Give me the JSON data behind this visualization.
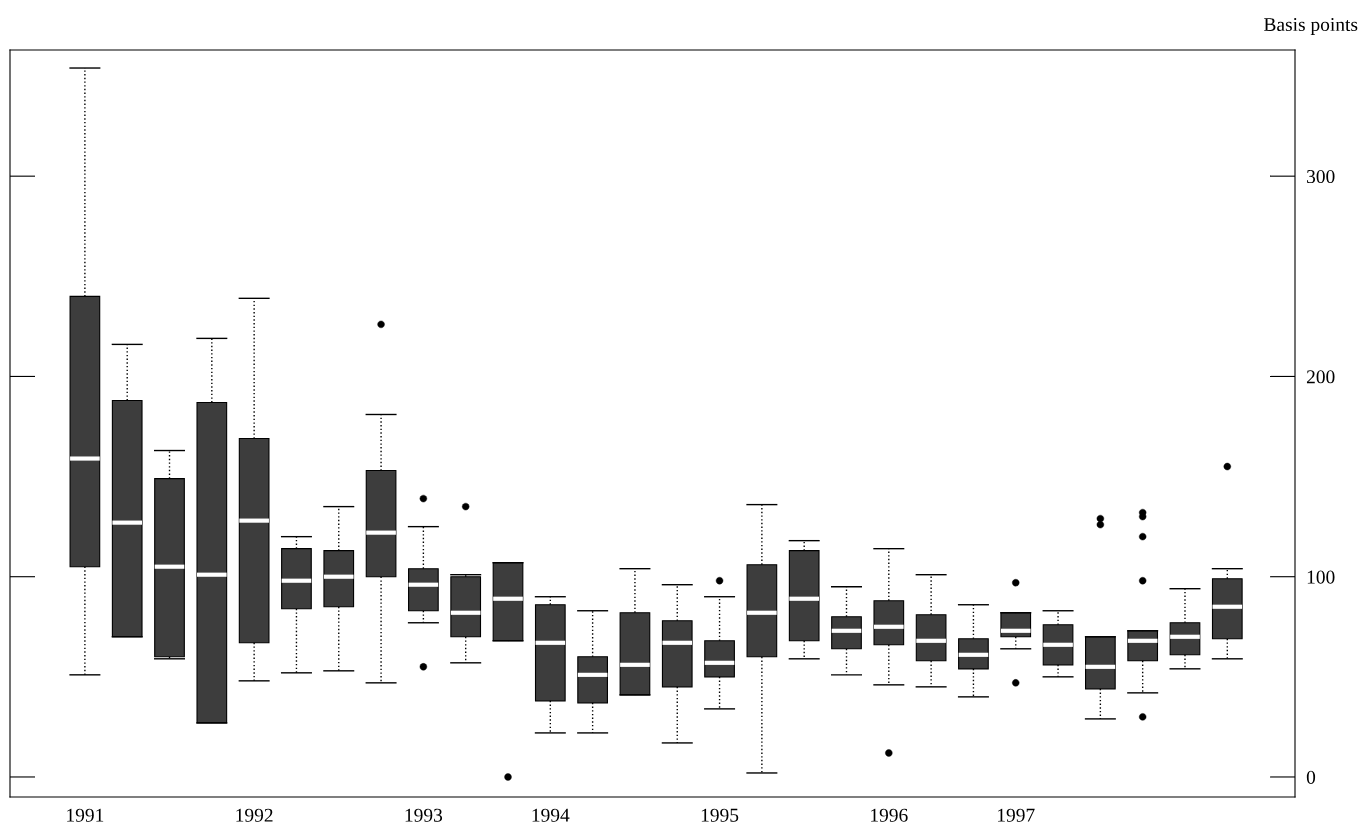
{
  "chart_data": {
    "type": "box",
    "ylabel": "Basis points",
    "color": "#3d3d3d",
    "categories": [
      "1991",
      null,
      null,
      null,
      "1992",
      null,
      null,
      null,
      "1993",
      null,
      null,
      "1994",
      null,
      null,
      null,
      "1995",
      null,
      null,
      null,
      "1996",
      null,
      null,
      "1997",
      null,
      null,
      null,
      null,
      null
    ],
    "boxes": [
      {
        "low": 51,
        "q1": 105,
        "median": 159,
        "q3": 240,
        "high": 354
      },
      {
        "low": 70,
        "q1": 70,
        "median": 127,
        "q3": 188,
        "high": 216
      },
      {
        "low": 59,
        "q1": 60,
        "median": 105,
        "q3": 149,
        "high": 163
      },
      {
        "low": 27,
        "q1": 27,
        "median": 101,
        "q3": 187,
        "high": 219
      },
      {
        "low": 48,
        "q1": 67,
        "median": 128,
        "q3": 169,
        "high": 239
      },
      {
        "low": 52,
        "q1": 84,
        "median": 98,
        "q3": 114,
        "high": 120
      },
      {
        "low": 53,
        "q1": 85,
        "median": 100,
        "q3": 113,
        "high": 135
      },
      {
        "low": 47,
        "q1": 100,
        "median": 122,
        "q3": 153,
        "high": 181,
        "outliers": [
          226
        ]
      },
      {
        "low": 77,
        "q1": 83,
        "median": 96,
        "q3": 104,
        "high": 125,
        "outliers": [
          139,
          55
        ]
      },
      {
        "low": 57,
        "q1": 70,
        "median": 82,
        "q3": 100,
        "high": 101,
        "outliers": [
          135
        ]
      },
      {
        "low": 68,
        "q1": 68,
        "median": 89,
        "q3": 107,
        "high": 107,
        "outliers": [
          0
        ]
      },
      {
        "low": 22,
        "q1": 38,
        "median": 67,
        "q3": 86,
        "high": 90
      },
      {
        "low": 22,
        "q1": 37,
        "median": 51,
        "q3": 60,
        "high": 83
      },
      {
        "low": 41,
        "q1": 41,
        "median": 56,
        "q3": 82,
        "high": 104
      },
      {
        "low": 17,
        "q1": 45,
        "median": 67,
        "q3": 78,
        "high": 96
      },
      {
        "low": 34,
        "q1": 50,
        "median": 57,
        "q3": 68,
        "high": 90,
        "outliers": [
          98
        ]
      },
      {
        "low": 2,
        "q1": 60,
        "median": 82,
        "q3": 106,
        "high": 136
      },
      {
        "low": 59,
        "q1": 68,
        "median": 89,
        "q3": 113,
        "high": 118
      },
      {
        "low": 51,
        "q1": 64,
        "median": 73,
        "q3": 80,
        "high": 95
      },
      {
        "low": 46,
        "q1": 66,
        "median": 75,
        "q3": 88,
        "high": 114,
        "outliers": [
          12
        ]
      },
      {
        "low": 45,
        "q1": 58,
        "median": 68,
        "q3": 81,
        "high": 101
      },
      {
        "low": 40,
        "q1": 54,
        "median": 61,
        "q3": 69,
        "high": 86
      },
      {
        "low": 64,
        "q1": 70,
        "median": 73,
        "q3": 82,
        "high": 82,
        "outliers": [
          97,
          47
        ]
      },
      {
        "low": 50,
        "q1": 56,
        "median": 66,
        "q3": 76,
        "high": 83
      },
      {
        "low": 29,
        "q1": 44,
        "median": 55,
        "q3": 70,
        "high": 70,
        "outliers": [
          129,
          126
        ]
      },
      {
        "low": 42,
        "q1": 58,
        "median": 68,
        "q3": 73,
        "high": 73,
        "outliers": [
          132,
          130,
          120,
          98,
          30
        ]
      },
      {
        "low": 54,
        "q1": 61,
        "median": 70,
        "q3": 77,
        "high": 94
      },
      {
        "low": 59,
        "q1": 69,
        "median": 85,
        "q3": 99,
        "high": 104,
        "outliers": [
          155
        ]
      }
    ],
    "ylim": [
      -10,
      363
    ],
    "yticks": [
      0,
      100,
      200,
      300
    ]
  }
}
